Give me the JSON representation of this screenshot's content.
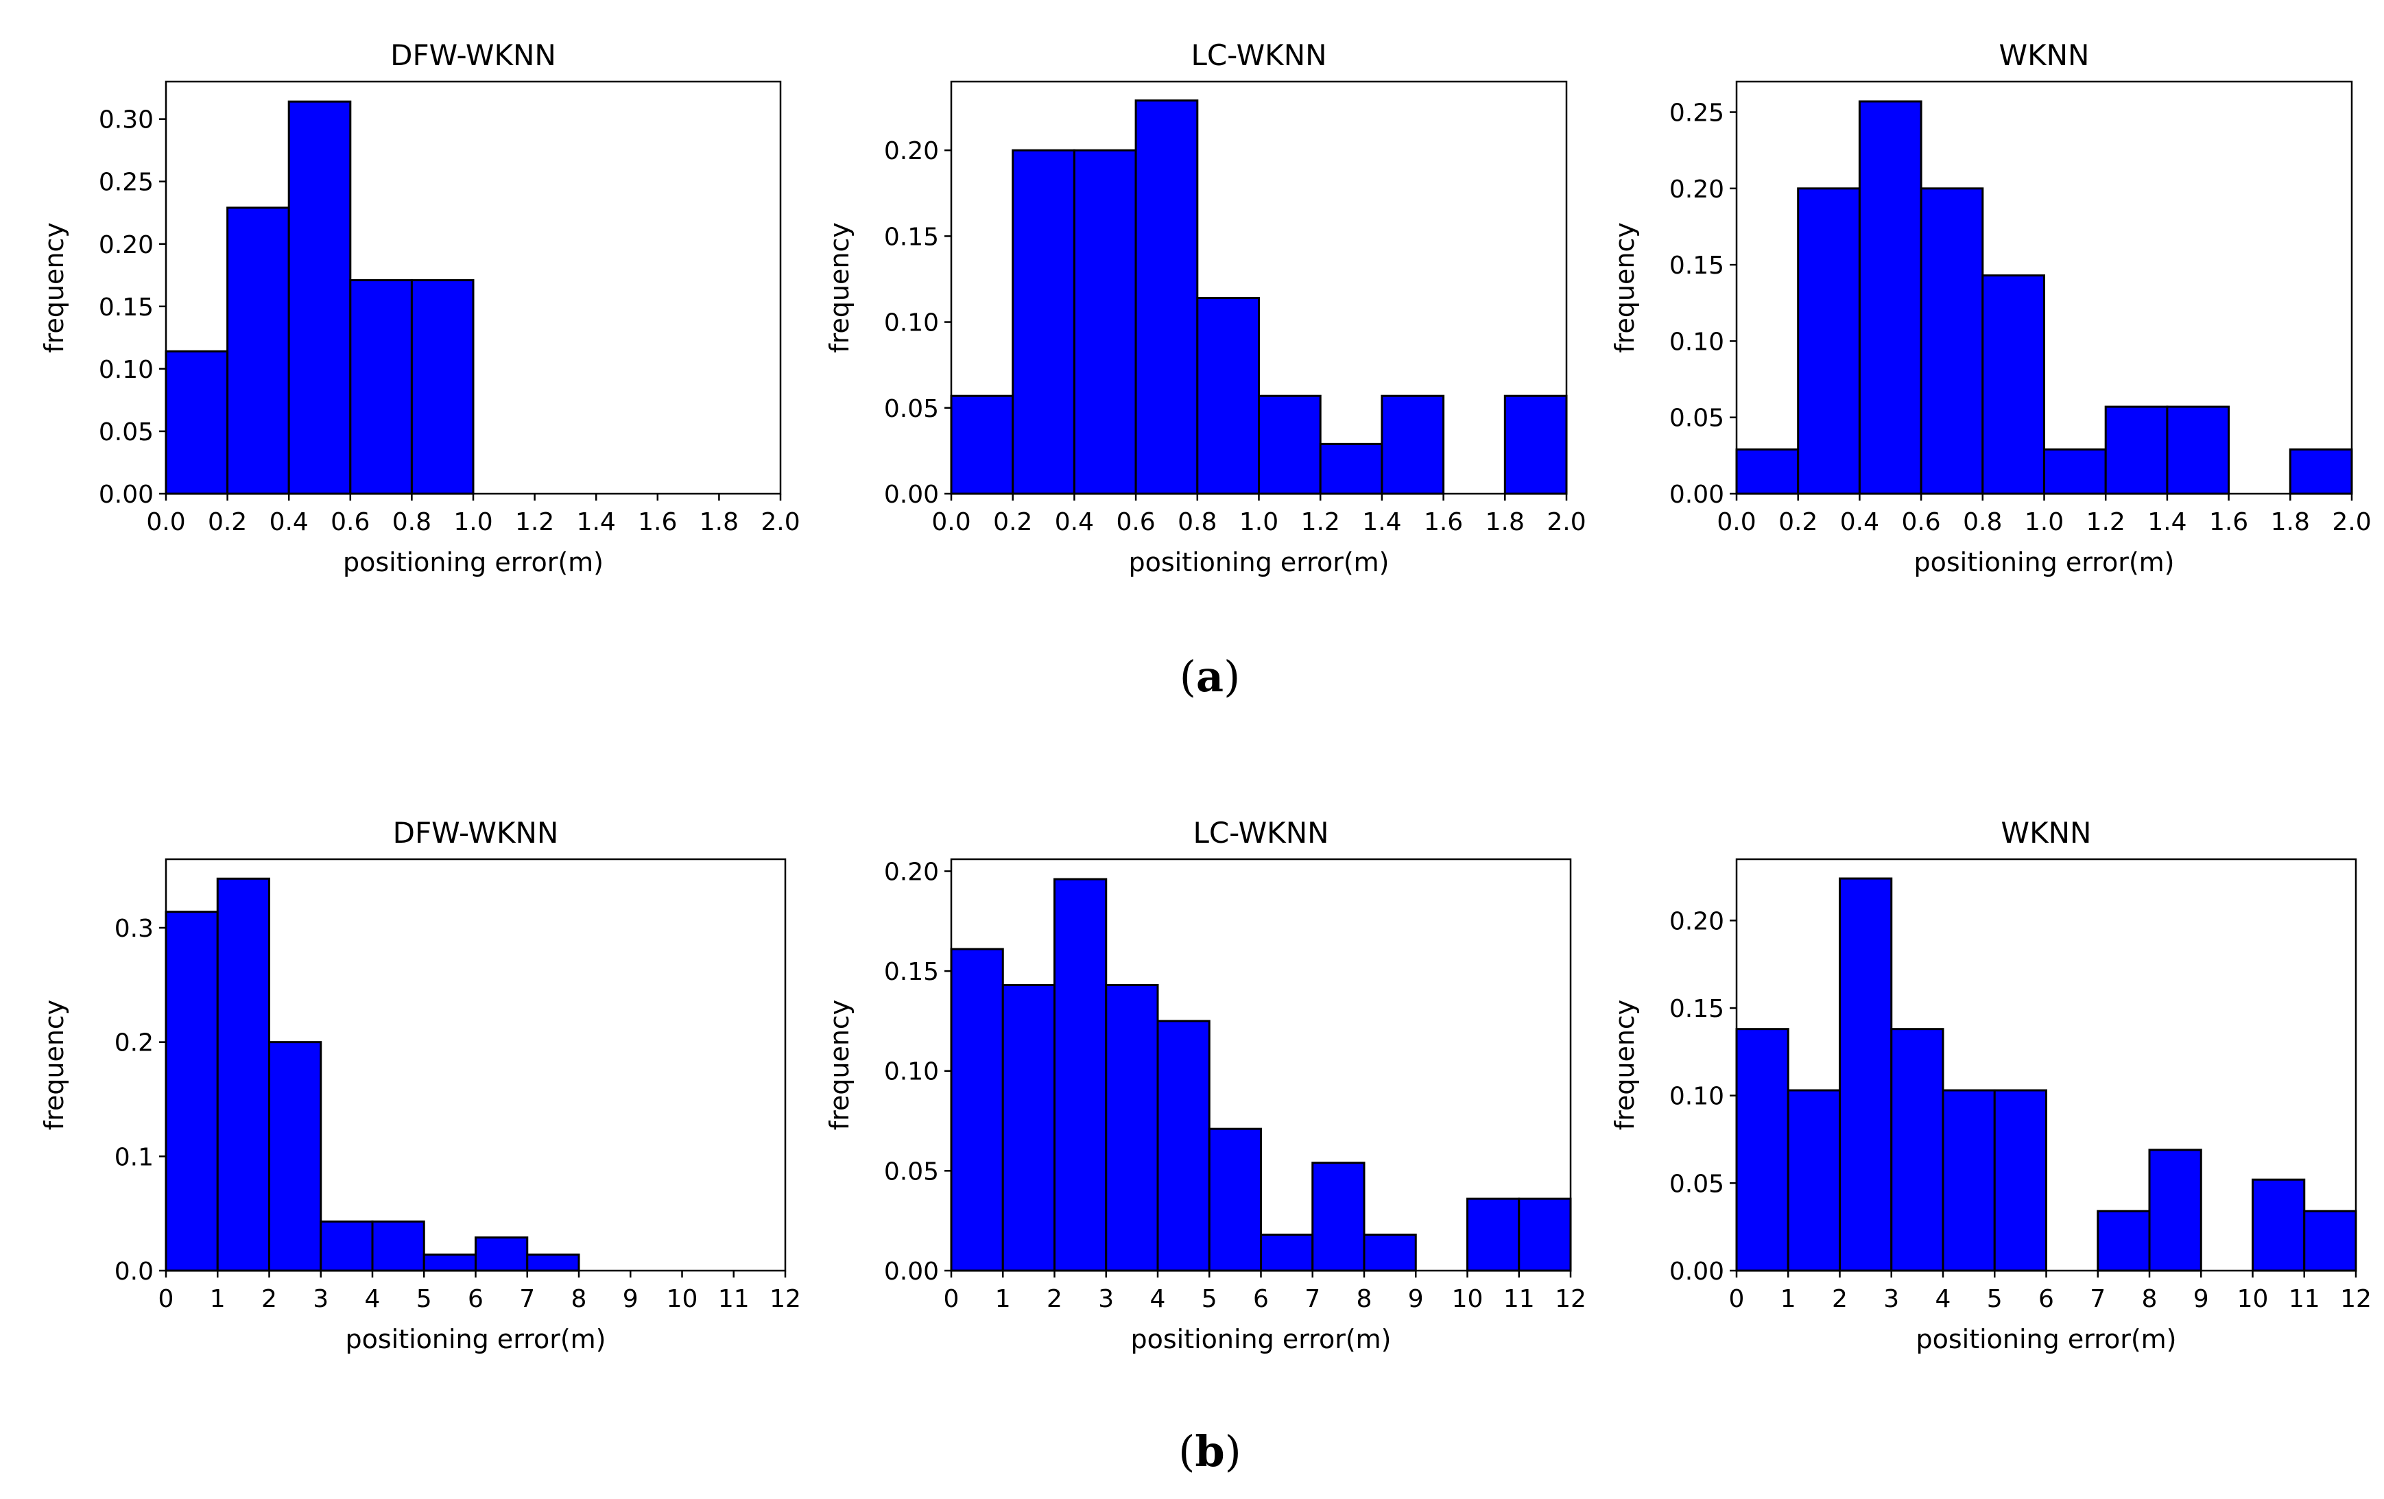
{
  "chart_data": [
    {
      "type": "bar",
      "group": "a",
      "title": "DFW-WKNN",
      "xlabel": "positioning error(m)",
      "ylabel": "frequency",
      "bin_edges": [
        0.0,
        0.2,
        0.4,
        0.6,
        0.8,
        1.0,
        1.2,
        1.4,
        1.6,
        1.8,
        2.0
      ],
      "values": [
        0.114,
        0.229,
        0.314,
        0.171,
        0.171,
        0,
        0,
        0,
        0,
        0
      ],
      "xlim": [
        0,
        2.0
      ],
      "ylim": [
        0,
        0.33
      ],
      "xticks": [
        "0.0",
        "0.2",
        "0.4",
        "0.6",
        "0.8",
        "1.0",
        "1.2",
        "1.4",
        "1.6",
        "1.8",
        "2.0"
      ],
      "yticks": [
        0,
        0.05,
        0.1,
        0.15,
        0.2,
        0.25,
        0.3
      ],
      "yticklabels": [
        "0.00",
        "0.05",
        "0.10",
        "0.15",
        "0.20",
        "0.25",
        "0.30"
      ]
    },
    {
      "type": "bar",
      "group": "a",
      "title": "LC-WKNN",
      "xlabel": "positioning error(m)",
      "ylabel": "frequency",
      "bin_edges": [
        0.0,
        0.2,
        0.4,
        0.6,
        0.8,
        1.0,
        1.2,
        1.4,
        1.6,
        1.8,
        2.0
      ],
      "values": [
        0.057,
        0.2,
        0.2,
        0.229,
        0.114,
        0.057,
        0.029,
        0.057,
        0,
        0.057
      ],
      "xlim": [
        0,
        2.0
      ],
      "ylim": [
        0,
        0.24
      ],
      "xticks": [
        "0.0",
        "0.2",
        "0.4",
        "0.6",
        "0.8",
        "1.0",
        "1.2",
        "1.4",
        "1.6",
        "1.8",
        "2.0"
      ],
      "yticks": [
        0,
        0.05,
        0.1,
        0.15,
        0.2
      ],
      "yticklabels": [
        "0.00",
        "0.05",
        "0.10",
        "0.15",
        "0.20"
      ]
    },
    {
      "type": "bar",
      "group": "a",
      "title": "WKNN",
      "xlabel": "positioning error(m)",
      "ylabel": "frequency",
      "bin_edges": [
        0.0,
        0.2,
        0.4,
        0.6,
        0.8,
        1.0,
        1.2,
        1.4,
        1.6,
        1.8,
        2.0
      ],
      "values": [
        0.029,
        0.2,
        0.257,
        0.2,
        0.143,
        0.029,
        0.057,
        0.057,
        0,
        0.029
      ],
      "xlim": [
        0,
        2.0
      ],
      "ylim": [
        0,
        0.27
      ],
      "xticks": [
        "0.0",
        "0.2",
        "0.4",
        "0.6",
        "0.8",
        "1.0",
        "1.2",
        "1.4",
        "1.6",
        "1.8",
        "2.0"
      ],
      "yticks": [
        0,
        0.05,
        0.1,
        0.15,
        0.2,
        0.25
      ],
      "yticklabels": [
        "0.00",
        "0.05",
        "0.10",
        "0.15",
        "0.20",
        "0.25"
      ]
    },
    {
      "type": "bar",
      "group": "b",
      "title": "DFW-WKNN",
      "xlabel": "positioning error(m)",
      "ylabel": "frequency",
      "bin_edges": [
        0,
        1,
        2,
        3,
        4,
        5,
        6,
        7,
        8,
        9,
        10,
        11,
        12
      ],
      "values": [
        0.314,
        0.343,
        0.2,
        0.043,
        0.043,
        0.014,
        0.029,
        0.014,
        0,
        0,
        0,
        0
      ],
      "xlim": [
        0,
        12
      ],
      "ylim": [
        0,
        0.36
      ],
      "xticks": [
        "0",
        "1",
        "2",
        "3",
        "4",
        "5",
        "6",
        "7",
        "8",
        "9",
        "10",
        "11",
        "12"
      ],
      "yticks": [
        0,
        0.1,
        0.2,
        0.3
      ],
      "yticklabels": [
        "0.0",
        "0.1",
        "0.2",
        "0.3"
      ]
    },
    {
      "type": "bar",
      "group": "b",
      "title": "LC-WKNN",
      "xlabel": "positioning error(m)",
      "ylabel": "frequency",
      "bin_edges": [
        0,
        1,
        2,
        3,
        4,
        5,
        6,
        7,
        8,
        9,
        10,
        11,
        12
      ],
      "values": [
        0.161,
        0.143,
        0.196,
        0.143,
        0.125,
        0.071,
        0.018,
        0.054,
        0.018,
        0,
        0.036,
        0.036
      ],
      "xlim": [
        0,
        12
      ],
      "ylim": [
        0,
        0.206
      ],
      "xticks": [
        "0",
        "1",
        "2",
        "3",
        "4",
        "5",
        "6",
        "7",
        "8",
        "9",
        "10",
        "11",
        "12"
      ],
      "yticks": [
        0,
        0.05,
        0.1,
        0.15,
        0.2
      ],
      "yticklabels": [
        "0.00",
        "0.05",
        "0.10",
        "0.15",
        "0.20"
      ]
    },
    {
      "type": "bar",
      "group": "b",
      "title": "WKNN",
      "xlabel": "positioning error(m)",
      "ylabel": "frequency",
      "bin_edges": [
        0,
        1,
        2,
        3,
        4,
        5,
        6,
        7,
        8,
        9,
        10,
        11,
        12
      ],
      "values": [
        0.138,
        0.103,
        0.224,
        0.138,
        0.103,
        0.103,
        0,
        0.034,
        0.069,
        0,
        0.052,
        0.034
      ],
      "xlim": [
        0,
        12
      ],
      "ylim": [
        0,
        0.235
      ],
      "xticks": [
        "0",
        "1",
        "2",
        "3",
        "4",
        "5",
        "6",
        "7",
        "8",
        "9",
        "10",
        "11",
        "12"
      ],
      "yticks": [
        0,
        0.05,
        0.1,
        0.15,
        0.2
      ],
      "yticklabels": [
        "0.00",
        "0.05",
        "0.10",
        "0.15",
        "0.20"
      ]
    }
  ],
  "style": {
    "bar_color": "#0000ff",
    "edge_color": "#000000"
  },
  "captions": {
    "a": "a",
    "b": "b"
  }
}
